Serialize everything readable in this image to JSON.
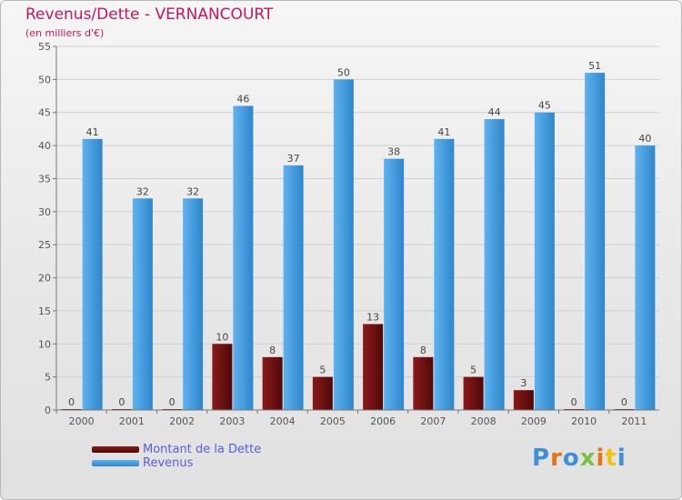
{
  "title": "Revenus/Dette - VERNANCOURT",
  "subtitle": "(en milliers d'€)",
  "legend": {
    "dette_label": "Montant de la Dette",
    "revenus_label": "Revenus"
  },
  "logo_text": "Proxiti",
  "colors": {
    "title": "#c2185b",
    "dette": "#6b0e0e",
    "revenus": "#3d97db",
    "legend_text": "#5560d6"
  },
  "chart_data": {
    "type": "bar",
    "title": "Revenus/Dette - VERNANCOURT",
    "ylabel": "(en milliers d'€)",
    "xlabel": "",
    "categories": [
      "2000",
      "2001",
      "2002",
      "2003",
      "2004",
      "2005",
      "2006",
      "2007",
      "2008",
      "2009",
      "2010",
      "2011"
    ],
    "series": [
      {
        "name": "Montant de la Dette",
        "values": [
          0,
          0,
          0,
          10,
          8,
          5,
          13,
          8,
          5,
          3,
          0,
          0
        ]
      },
      {
        "name": "Revenus",
        "values": [
          41,
          32,
          32,
          46,
          37,
          50,
          38,
          41,
          44,
          45,
          51,
          40
        ]
      }
    ],
    "ylim": [
      0,
      55
    ],
    "yticks": [
      0,
      5,
      10,
      15,
      20,
      25,
      30,
      35,
      40,
      45,
      50,
      55
    ],
    "grid": true,
    "legend_position": "bottom-left"
  }
}
